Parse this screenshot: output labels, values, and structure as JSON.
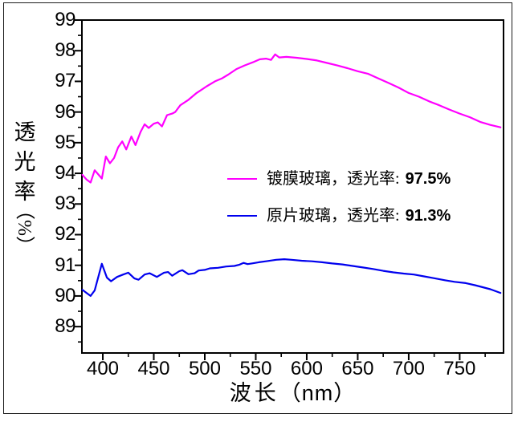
{
  "figure": {
    "description_colors": {
      "coated_line": "#FF00FF",
      "plain_line": "#0000EE",
      "axis": "#000000",
      "background": "#FFFFFF"
    }
  },
  "legend": {
    "items": [
      {
        "prefix": "镀膜玻璃，透光率: ",
        "value": "97.5%",
        "color": "#FF00FF"
      },
      {
        "prefix": "原片玻璃，透光率: ",
        "value": "91.3%",
        "color": "#0000EE"
      }
    ]
  },
  "chart_data": {
    "type": "line",
    "title": "",
    "xlabel": "波长（nm）",
    "ylabel": "透光率（%）",
    "labels": {
      "x_title": "波长",
      "x_title_unit": "（nm）",
      "y_title_chars": [
        "透",
        "光",
        "率"
      ],
      "y_title_unit": "（%）"
    },
    "xlim": [
      379.5,
      793
    ],
    "ylim": [
      88.14,
      99
    ],
    "x_ticks": [
      400,
      450,
      500,
      550,
      600,
      650,
      700,
      750
    ],
    "y_ticks": [
      99,
      98,
      97,
      96,
      95,
      94,
      93,
      92,
      91,
      90,
      89
    ],
    "x_minor_step": 25,
    "y_minor_step": 0.5,
    "grid": false,
    "legend_position": "center-right",
    "series": [
      {
        "id": "coated-glass",
        "name": "镀膜玻璃",
        "stated_transmittance": "97.5%",
        "color": "#FF00FF",
        "points": [
          [
            380,
            93.95
          ],
          [
            384,
            93.8
          ],
          [
            388,
            93.7
          ],
          [
            392,
            94.1
          ],
          [
            396,
            93.95
          ],
          [
            399,
            93.83
          ],
          [
            403,
            94.55
          ],
          [
            407,
            94.33
          ],
          [
            411,
            94.5
          ],
          [
            415,
            94.85
          ],
          [
            419,
            95.04
          ],
          [
            423,
            94.78
          ],
          [
            428,
            95.2
          ],
          [
            432,
            94.92
          ],
          [
            437,
            95.35
          ],
          [
            441,
            95.6
          ],
          [
            445,
            95.48
          ],
          [
            450,
            95.62
          ],
          [
            454,
            95.66
          ],
          [
            458,
            95.53
          ],
          [
            463,
            95.9
          ],
          [
            468,
            95.95
          ],
          [
            471,
            96.0
          ],
          [
            476,
            96.22
          ],
          [
            484,
            96.4
          ],
          [
            492,
            96.62
          ],
          [
            502,
            96.84
          ],
          [
            510,
            97.0
          ],
          [
            517,
            97.1
          ],
          [
            523,
            97.22
          ],
          [
            531,
            97.4
          ],
          [
            539,
            97.52
          ],
          [
            547,
            97.62
          ],
          [
            554,
            97.72
          ],
          [
            560,
            97.74
          ],
          [
            565,
            97.7
          ],
          [
            569,
            97.88
          ],
          [
            573,
            97.78
          ],
          [
            580,
            97.8
          ],
          [
            590,
            97.77
          ],
          [
            600,
            97.73
          ],
          [
            610,
            97.68
          ],
          [
            620,
            97.6
          ],
          [
            630,
            97.52
          ],
          [
            640,
            97.43
          ],
          [
            650,
            97.33
          ],
          [
            660,
            97.25
          ],
          [
            670,
            97.1
          ],
          [
            680,
            96.95
          ],
          [
            690,
            96.8
          ],
          [
            700,
            96.62
          ],
          [
            710,
            96.5
          ],
          [
            720,
            96.35
          ],
          [
            730,
            96.22
          ],
          [
            740,
            96.08
          ],
          [
            750,
            95.95
          ],
          [
            760,
            95.83
          ],
          [
            770,
            95.68
          ],
          [
            780,
            95.58
          ],
          [
            790,
            95.5
          ]
        ]
      },
      {
        "id": "plain-glass",
        "name": "原片玻璃",
        "stated_transmittance": "91.3%",
        "color": "#0000EE",
        "points": [
          [
            380,
            90.2
          ],
          [
            384,
            90.1
          ],
          [
            388,
            90.0
          ],
          [
            392,
            90.18
          ],
          [
            395,
            90.55
          ],
          [
            399,
            91.05
          ],
          [
            404,
            90.6
          ],
          [
            408,
            90.48
          ],
          [
            414,
            90.62
          ],
          [
            420,
            90.7
          ],
          [
            425,
            90.76
          ],
          [
            431,
            90.57
          ],
          [
            435,
            90.53
          ],
          [
            441,
            90.7
          ],
          [
            446,
            90.74
          ],
          [
            453,
            90.62
          ],
          [
            460,
            90.76
          ],
          [
            464,
            90.78
          ],
          [
            468,
            90.66
          ],
          [
            475,
            90.81
          ],
          [
            478,
            90.84
          ],
          [
            484,
            90.71
          ],
          [
            490,
            90.74
          ],
          [
            494,
            90.83
          ],
          [
            500,
            90.85
          ],
          [
            505,
            90.9
          ],
          [
            513,
            90.92
          ],
          [
            521,
            90.96
          ],
          [
            529,
            90.98
          ],
          [
            534,
            91.02
          ],
          [
            538,
            91.08
          ],
          [
            542,
            91.04
          ],
          [
            546,
            91.06
          ],
          [
            553,
            91.1
          ],
          [
            560,
            91.13
          ],
          [
            570,
            91.18
          ],
          [
            578,
            91.2
          ],
          [
            585,
            91.18
          ],
          [
            595,
            91.15
          ],
          [
            605,
            91.13
          ],
          [
            615,
            91.1
          ],
          [
            625,
            91.06
          ],
          [
            635,
            91.03
          ],
          [
            645,
            90.98
          ],
          [
            655,
            90.93
          ],
          [
            665,
            90.88
          ],
          [
            675,
            90.82
          ],
          [
            685,
            90.77
          ],
          [
            695,
            90.73
          ],
          [
            705,
            90.7
          ],
          [
            715,
            90.64
          ],
          [
            725,
            90.58
          ],
          [
            736,
            90.51
          ],
          [
            745,
            90.46
          ],
          [
            756,
            90.42
          ],
          [
            765,
            90.35
          ],
          [
            771,
            90.3
          ],
          [
            780,
            90.22
          ],
          [
            790,
            90.1
          ]
        ]
      }
    ]
  }
}
